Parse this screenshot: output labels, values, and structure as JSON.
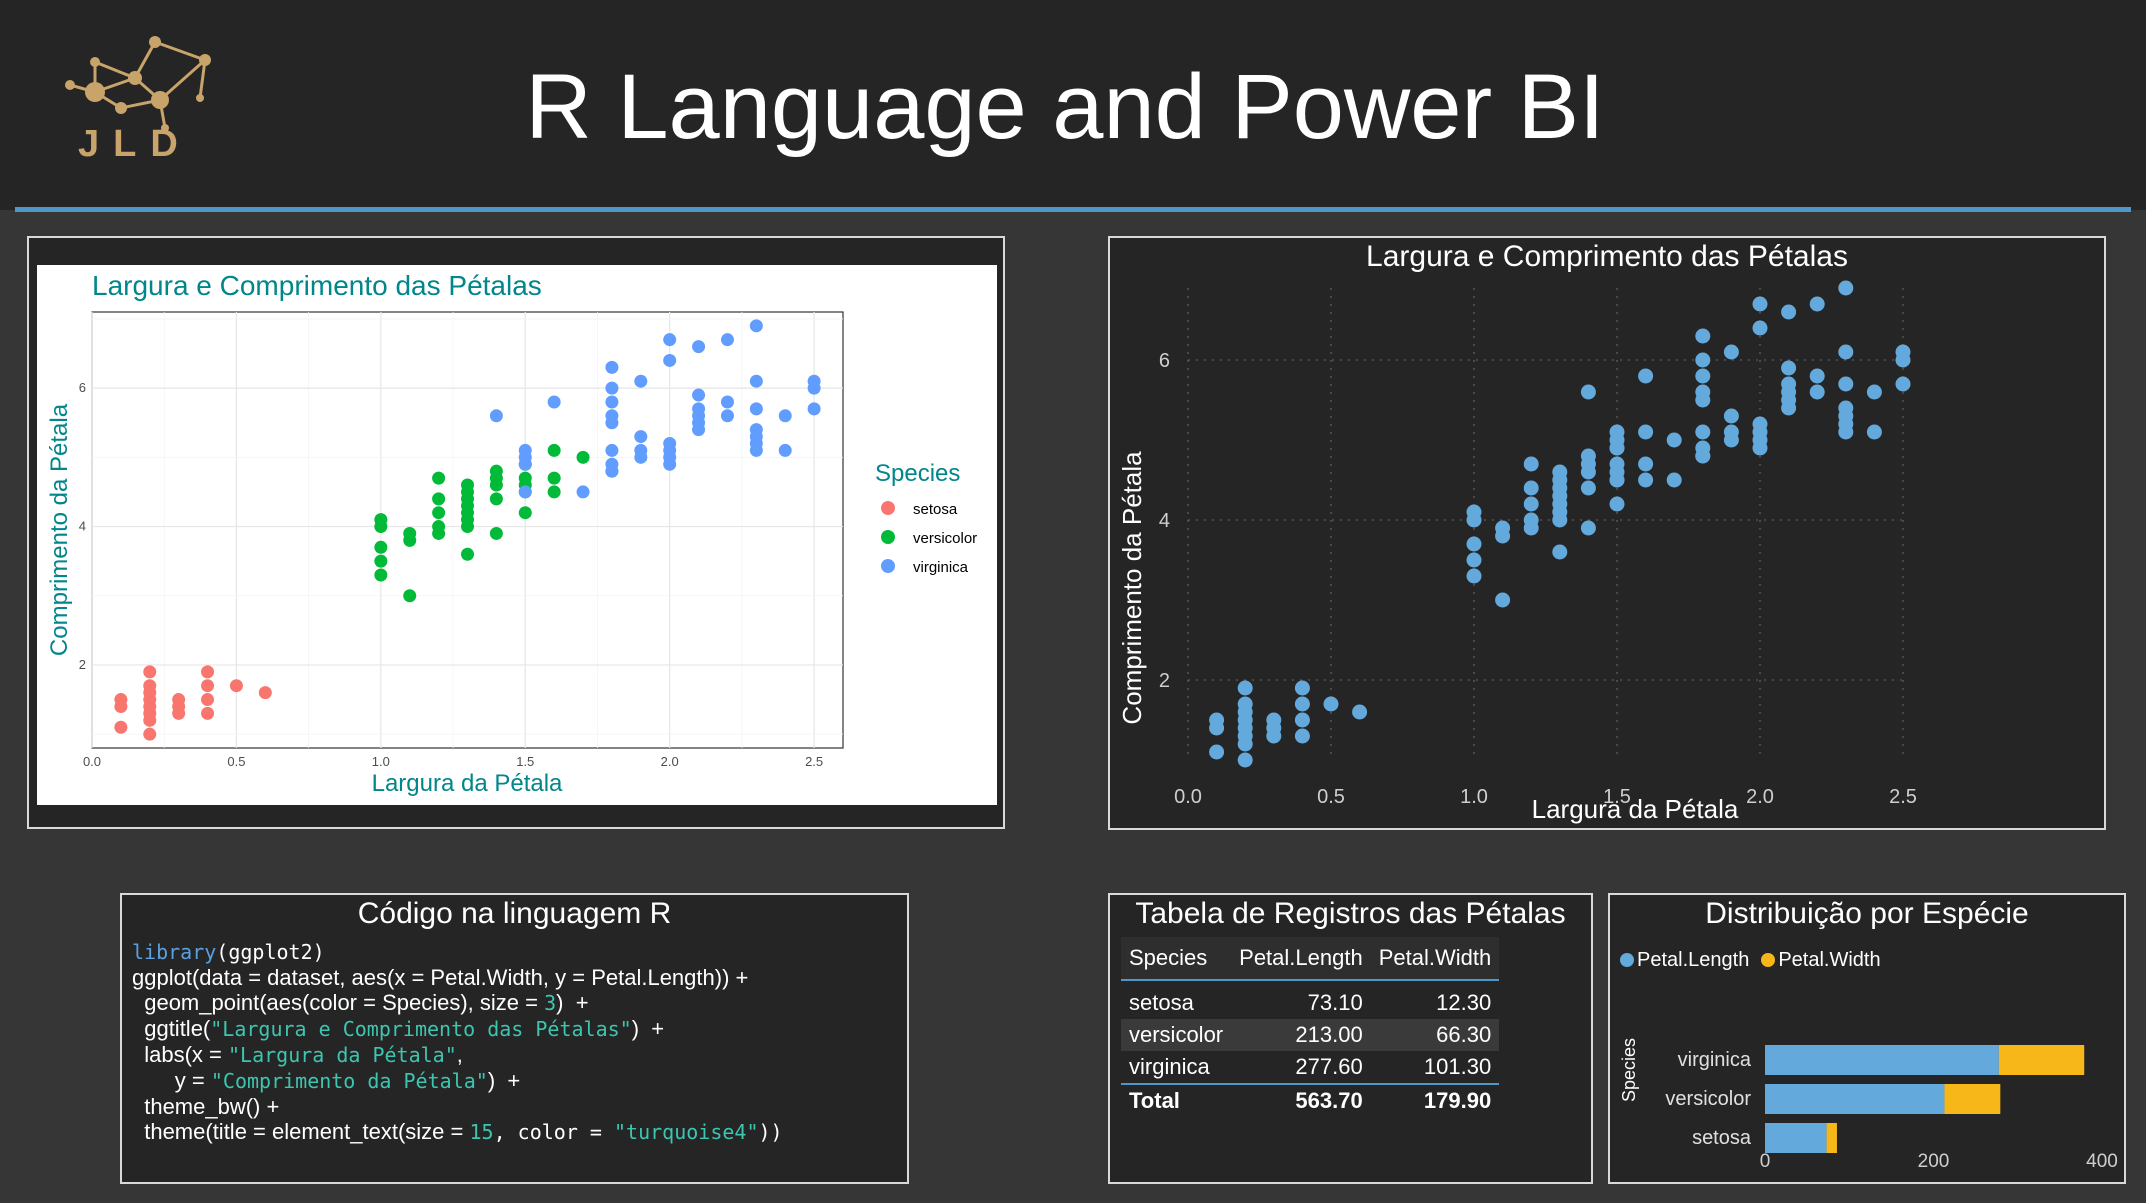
{
  "header": {
    "title": "R Language and Power BI",
    "logo_text": "JLD"
  },
  "colors": {
    "accent_line": "#4f97c9",
    "setosa": "#f8766d",
    "versicolor": "#00ba38",
    "virginica": "#619cff",
    "pbi_point": "#64a9dc",
    "pbi_width": "#f8b719",
    "turquoise4": "#00868b"
  },
  "ggplot": {
    "title": "Largura e Comprimento das Pétalas",
    "xlabel": "Largura da Pétala",
    "ylabel": "Comprimento da Pétala",
    "legend_title": "Species",
    "legend_items": [
      "setosa",
      "versicolor",
      "virginica"
    ]
  },
  "pbi_scatter": {
    "title": "Largura e Comprimento das Pétalas",
    "xlabel": "Largura da Pétala",
    "ylabel": "Comprimento da Pétala"
  },
  "code_panel": {
    "title": "Código na linguagem R",
    "lines": [
      [
        {
          "t": "library",
          "c": "kw m"
        },
        {
          "t": "(ggplot2)",
          "c": "m"
        }
      ],
      [
        {
          "t": "ggplot(data = dataset, aes(x = Petal.Width, y = Petal.Length)) +",
          "c": ""
        }
      ],
      [
        {
          "t": "  geom_point(aes(color = Species), size = ",
          "c": ""
        },
        {
          "t": "3",
          "c": "num m"
        },
        {
          "t": ")  +",
          "c": ""
        }
      ],
      [
        {
          "t": "  ggtitle(",
          "c": ""
        },
        {
          "t": "\"Largura e Comprimento das Pétalas\"",
          "c": "str m"
        },
        {
          "t": ")  +",
          "c": ""
        }
      ],
      [
        {
          "t": "  labs(x = ",
          "c": ""
        },
        {
          "t": "\"Largura da Pétala\"",
          "c": "str m"
        },
        {
          "t": ",",
          "c": ""
        }
      ],
      [
        {
          "t": "       y = ",
          "c": ""
        },
        {
          "t": "\"Comprimento da Pétala\"",
          "c": "str m"
        },
        {
          "t": ")  +",
          "c": ""
        }
      ],
      [
        {
          "t": "  theme_bw() +",
          "c": ""
        }
      ],
      [
        {
          "t": "  theme(title = element_text(size = ",
          "c": ""
        },
        {
          "t": "15",
          "c": "num m"
        },
        {
          "t": ", color = ",
          "c": "m"
        },
        {
          "t": "\"turquoise4\"",
          "c": "str m"
        },
        {
          "t": "))",
          "c": "m"
        }
      ]
    ]
  },
  "table_panel": {
    "title": "Tabela de Registros das Pétalas",
    "columns": [
      "Species",
      "Petal.Length",
      "Petal.Width"
    ],
    "rows": [
      [
        "setosa",
        "73.10",
        "12.30"
      ],
      [
        "versicolor",
        "213.00",
        "66.30"
      ],
      [
        "virginica",
        "277.60",
        "101.30"
      ]
    ],
    "total": [
      "Total",
      "563.70",
      "179.90"
    ]
  },
  "bar_panel": {
    "title": "Distribuição por Espécie",
    "legend": [
      "Petal.Length",
      "Petal.Width"
    ],
    "ylabel": "Species"
  },
  "chart_data": [
    {
      "type": "scatter",
      "title": "Largura e Comprimento das Pétalas",
      "xlabel": "Largura da Pétala",
      "ylabel": "Comprimento da Pétala",
      "xlim": [
        0,
        2.6
      ],
      "ylim": [
        0.8,
        7.1
      ],
      "xticks": [
        "0.0",
        "0.5",
        "1.0",
        "1.5",
        "2.0",
        "2.5"
      ],
      "yticks": [
        "2",
        "4",
        "6"
      ],
      "legend_title": "Species",
      "legend_position": "right",
      "grid": true,
      "series": [
        {
          "name": "setosa",
          "points": [
            [
              0.1,
              1.1
            ],
            [
              0.1,
              1.4
            ],
            [
              0.1,
              1.5
            ],
            [
              0.2,
              1.0
            ],
            [
              0.2,
              1.2
            ],
            [
              0.2,
              1.3
            ],
            [
              0.2,
              1.4
            ],
            [
              0.2,
              1.5
            ],
            [
              0.2,
              1.6
            ],
            [
              0.2,
              1.7
            ],
            [
              0.2,
              1.9
            ],
            [
              0.3,
              1.3
            ],
            [
              0.3,
              1.4
            ],
            [
              0.3,
              1.5
            ],
            [
              0.4,
              1.3
            ],
            [
              0.4,
              1.5
            ],
            [
              0.4,
              1.7
            ],
            [
              0.4,
              1.9
            ],
            [
              0.5,
              1.7
            ],
            [
              0.6,
              1.6
            ]
          ]
        },
        {
          "name": "versicolor",
          "points": [
            [
              1.0,
              3.3
            ],
            [
              1.0,
              3.5
            ],
            [
              1.0,
              3.7
            ],
            [
              1.0,
              4.0
            ],
            [
              1.0,
              4.1
            ],
            [
              1.1,
              3.0
            ],
            [
              1.1,
              3.8
            ],
            [
              1.1,
              3.9
            ],
            [
              1.2,
              3.9
            ],
            [
              1.2,
              4.0
            ],
            [
              1.2,
              4.2
            ],
            [
              1.2,
              4.4
            ],
            [
              1.2,
              4.7
            ],
            [
              1.3,
              3.6
            ],
            [
              1.3,
              4.0
            ],
            [
              1.3,
              4.1
            ],
            [
              1.3,
              4.2
            ],
            [
              1.3,
              4.3
            ],
            [
              1.3,
              4.4
            ],
            [
              1.3,
              4.5
            ],
            [
              1.3,
              4.6
            ],
            [
              1.4,
              3.9
            ],
            [
              1.4,
              4.4
            ],
            [
              1.4,
              4.6
            ],
            [
              1.4,
              4.7
            ],
            [
              1.4,
              4.8
            ],
            [
              1.5,
              4.2
            ],
            [
              1.5,
              4.5
            ],
            [
              1.5,
              4.6
            ],
            [
              1.5,
              4.7
            ],
            [
              1.5,
              4.9
            ],
            [
              1.6,
              4.5
            ],
            [
              1.6,
              4.7
            ],
            [
              1.6,
              5.1
            ],
            [
              1.7,
              5.0
            ],
            [
              1.8,
              4.8
            ]
          ]
        },
        {
          "name": "virginica",
          "points": [
            [
              1.4,
              5.6
            ],
            [
              1.5,
              4.5
            ],
            [
              1.5,
              4.9
            ],
            [
              1.5,
              5.0
            ],
            [
              1.5,
              5.1
            ],
            [
              1.6,
              5.8
            ],
            [
              1.7,
              4.5
            ],
            [
              1.8,
              4.8
            ],
            [
              1.8,
              4.9
            ],
            [
              1.8,
              5.1
            ],
            [
              1.8,
              5.5
            ],
            [
              1.8,
              5.6
            ],
            [
              1.8,
              5.8
            ],
            [
              1.8,
              6.0
            ],
            [
              1.8,
              6.3
            ],
            [
              1.9,
              5.0
            ],
            [
              1.9,
              5.1
            ],
            [
              1.9,
              5.3
            ],
            [
              1.9,
              6.1
            ],
            [
              2.0,
              4.9
            ],
            [
              2.0,
              5.0
            ],
            [
              2.0,
              5.1
            ],
            [
              2.0,
              5.2
            ],
            [
              2.0,
              6.4
            ],
            [
              2.0,
              6.7
            ],
            [
              2.1,
              5.4
            ],
            [
              2.1,
              5.5
            ],
            [
              2.1,
              5.6
            ],
            [
              2.1,
              5.7
            ],
            [
              2.1,
              5.9
            ],
            [
              2.1,
              6.6
            ],
            [
              2.2,
              5.6
            ],
            [
              2.2,
              5.8
            ],
            [
              2.2,
              6.7
            ],
            [
              2.3,
              5.1
            ],
            [
              2.3,
              5.2
            ],
            [
              2.3,
              5.3
            ],
            [
              2.3,
              5.4
            ],
            [
              2.3,
              5.7
            ],
            [
              2.3,
              6.1
            ],
            [
              2.3,
              6.9
            ],
            [
              2.4,
              5.1
            ],
            [
              2.4,
              5.6
            ],
            [
              2.5,
              5.7
            ],
            [
              2.5,
              6.0
            ],
            [
              2.5,
              6.1
            ]
          ]
        }
      ]
    },
    {
      "type": "scatter",
      "title": "Largura e Comprimento das Pétalas",
      "xlabel": "Largura da Pétala",
      "ylabel": "Comprimento da Pétala",
      "xlim": [
        0,
        2.5
      ],
      "ylim": [
        1.0,
        6.9
      ],
      "xticks": [
        "0.0",
        "0.5",
        "1.0",
        "1.5",
        "2.0",
        "2.5"
      ],
      "yticks": [
        "2",
        "4",
        "6"
      ],
      "grid": true,
      "same_points_as": "chart 1, single color"
    },
    {
      "type": "bar",
      "orientation": "horizontal",
      "stacked": true,
      "title": "Distribuição por Espécie",
      "categories": [
        "virginica",
        "versicolor",
        "setosa"
      ],
      "series": [
        {
          "name": "Petal.Length",
          "values": [
            277.6,
            213.0,
            73.1
          ]
        },
        {
          "name": "Petal.Width",
          "values": [
            101.3,
            66.3,
            12.3
          ]
        }
      ],
      "ylabel": "Species",
      "xticks": [
        "0",
        "200",
        "400"
      ],
      "xlim": [
        0,
        400
      ],
      "legend_position": "top-left"
    }
  ]
}
